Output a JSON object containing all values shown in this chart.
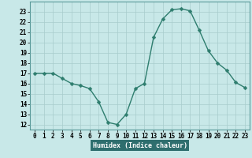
{
  "x": [
    0,
    1,
    2,
    3,
    4,
    5,
    6,
    7,
    8,
    9,
    10,
    11,
    12,
    13,
    14,
    15,
    16,
    17,
    18,
    19,
    20,
    21,
    22,
    23
  ],
  "y": [
    17,
    17,
    17,
    16.5,
    16,
    15.8,
    15.5,
    14.2,
    12.2,
    12,
    13,
    15.5,
    16,
    20.5,
    22.3,
    23.2,
    23.3,
    23.1,
    21.2,
    19.2,
    18,
    17.3,
    16.1,
    15.6
  ],
  "xlabel": "Humidex (Indice chaleur)",
  "xlim": [
    -0.5,
    23.5
  ],
  "ylim": [
    11.5,
    24
  ],
  "yticks": [
    12,
    13,
    14,
    15,
    16,
    17,
    18,
    19,
    20,
    21,
    22,
    23
  ],
  "xticks": [
    0,
    1,
    2,
    3,
    4,
    5,
    6,
    7,
    8,
    9,
    10,
    11,
    12,
    13,
    14,
    15,
    16,
    17,
    18,
    19,
    20,
    21,
    22,
    23
  ],
  "line_color": "#2e7d6e",
  "marker_color": "#2e7d6e",
  "bg_color": "#c8e8e8",
  "grid_color": "#a8cccc",
  "xlabel_bg": "#2e6e6e",
  "xlabel_fg": "#ffffff",
  "font_size_axis": 6.0,
  "font_size_ticks": 5.5,
  "line_width": 1.0,
  "marker_size": 2.5
}
